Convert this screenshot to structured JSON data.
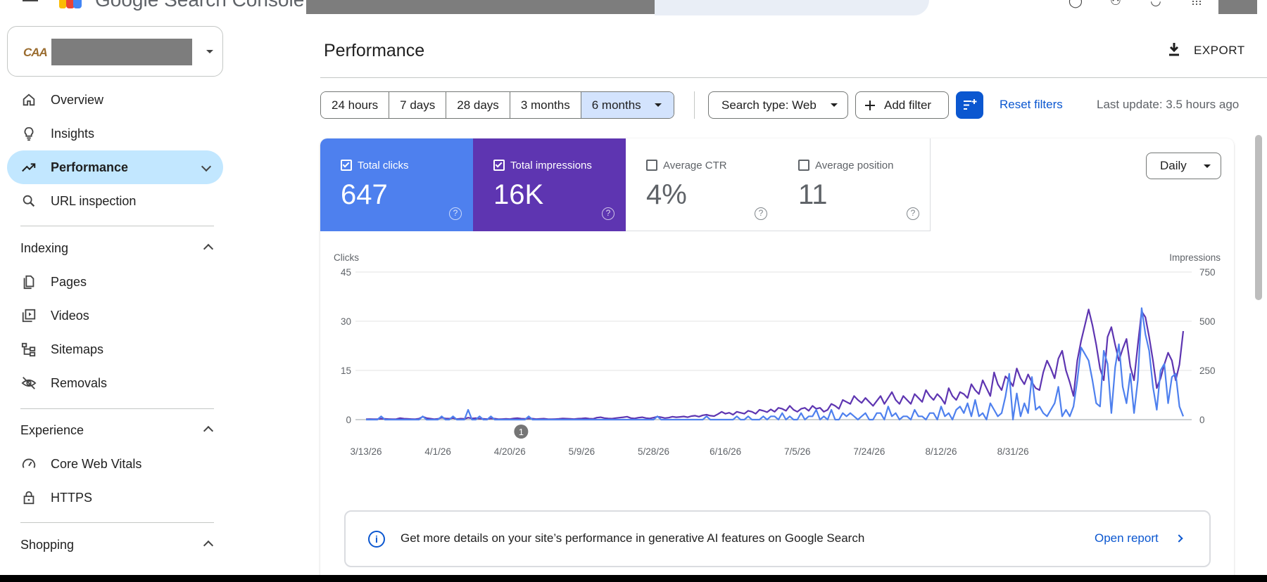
{
  "app": {
    "title": "Google Search Console"
  },
  "property": {
    "logo_text": "CAA"
  },
  "sidebar": {
    "items": [
      {
        "label": "Overview",
        "icon": "home-icon"
      },
      {
        "label": "Insights",
        "icon": "lightbulb-icon"
      },
      {
        "label": "Performance",
        "icon": "trending-up-icon",
        "active": true
      },
      {
        "label": "URL inspection",
        "icon": "search-icon"
      }
    ],
    "indexing": {
      "title": "Indexing",
      "items": [
        {
          "label": "Pages",
          "icon": "pages-icon"
        },
        {
          "label": "Videos",
          "icon": "video-library-icon"
        },
        {
          "label": "Sitemaps",
          "icon": "sitemap-icon"
        },
        {
          "label": "Removals",
          "icon": "visibility-off-icon"
        }
      ]
    },
    "experience": {
      "title": "Experience",
      "items": [
        {
          "label": "Core Web Vitals",
          "icon": "speed-icon"
        },
        {
          "label": "HTTPS",
          "icon": "lock-icon"
        }
      ]
    },
    "shopping": {
      "title": "Shopping"
    }
  },
  "main": {
    "title": "Performance",
    "export_label": "EXPORT",
    "date_ranges": [
      "24 hours",
      "7 days",
      "28 days",
      "3 months",
      "6 months"
    ],
    "selected_range": "6 months",
    "search_type": "Search type: Web",
    "add_filter": "Add filter",
    "reset_filters": "Reset filters",
    "last_update": "Last update: 3.5 hours ago",
    "granularity": "Daily"
  },
  "metrics": {
    "clicks": {
      "label": "Total clicks",
      "value": "647",
      "checked": true,
      "color": "#4e80ee"
    },
    "impressions": {
      "label": "Total impressions",
      "value": "16K",
      "checked": true,
      "color": "#5e35b1"
    },
    "ctr": {
      "label": "Average CTR",
      "value": "4%",
      "checked": false
    },
    "position": {
      "label": "Average position",
      "value": "11",
      "checked": false
    }
  },
  "chart_data": {
    "type": "line",
    "left_axis_label": "Clicks",
    "right_axis_label": "Impressions",
    "left_ticks": [
      0,
      15,
      30,
      45
    ],
    "right_ticks": [
      0,
      250,
      500,
      750
    ],
    "ylim_left": [
      0,
      45
    ],
    "ylim_right": [
      0,
      750
    ],
    "x_tick_labels": [
      "3/13/26",
      "4/1/26",
      "4/20/26",
      "5/9/26",
      "5/28/26",
      "6/16/26",
      "7/5/26",
      "7/24/26",
      "8/12/26",
      "8/31/26"
    ],
    "annotation": "1",
    "series": [
      {
        "name": "Clicks",
        "axis": "left",
        "color": "#4e80ee",
        "values": [
          0,
          0,
          0,
          0,
          1,
          0,
          0,
          0,
          0,
          0,
          0,
          0,
          0,
          0,
          0,
          1,
          0,
          0,
          0,
          0,
          1,
          0,
          0,
          1,
          0,
          0,
          0,
          3,
          0,
          0,
          1,
          0,
          0,
          1,
          0,
          0,
          0,
          0,
          0,
          0,
          0,
          0,
          0,
          1,
          0,
          0,
          0,
          0,
          0,
          0,
          0,
          0,
          0,
          0,
          0,
          0,
          0,
          0,
          0,
          0,
          0,
          0,
          0,
          0,
          0,
          0,
          0,
          0,
          0,
          0,
          0,
          0,
          0,
          0,
          0,
          0,
          0,
          1,
          0,
          0,
          0,
          0,
          0,
          0,
          0,
          0,
          0,
          0,
          0,
          0,
          1,
          0,
          0,
          0,
          0,
          0,
          0,
          0,
          1,
          0,
          0,
          1,
          0,
          0,
          0,
          1,
          0,
          1,
          1,
          0,
          2,
          0,
          1,
          0,
          0,
          2,
          0,
          1,
          1,
          3,
          0,
          1,
          0,
          3,
          0,
          0,
          2,
          1,
          2,
          1,
          0,
          1,
          2,
          0,
          0,
          2,
          2,
          0,
          4,
          1,
          2,
          0,
          1,
          1,
          0,
          3,
          1,
          1,
          0,
          2,
          2,
          0,
          4,
          1,
          2,
          0,
          3,
          4,
          2,
          5,
          1,
          6,
          1,
          2,
          0,
          5,
          3,
          1,
          2,
          7,
          14,
          0,
          8,
          1,
          5,
          2,
          13,
          3,
          4,
          2,
          1,
          3,
          5,
          10,
          1,
          3,
          1,
          4,
          12,
          22,
          20,
          18,
          12,
          5,
          4,
          21,
          17,
          2,
          16,
          23,
          10,
          5,
          14,
          2,
          12,
          34,
          26,
          21,
          10,
          3,
          15,
          17,
          5,
          13,
          14,
          4,
          1
        ]
      },
      {
        "name": "Impressions",
        "axis": "right",
        "color": "#5e35b1",
        "values": [
          2,
          3,
          2,
          3,
          5,
          4,
          3,
          2,
          3,
          8,
          5,
          4,
          3,
          2,
          5,
          15,
          8,
          5,
          2,
          4,
          10,
          6,
          5,
          8,
          3,
          5,
          4,
          10,
          6,
          8,
          5,
          4,
          3,
          6,
          5,
          2,
          3,
          4,
          3,
          6,
          8,
          5,
          4,
          6,
          5,
          3,
          4,
          5,
          3,
          2,
          3,
          4,
          6,
          5,
          4,
          3,
          5,
          6,
          8,
          5,
          4,
          10,
          12,
          8,
          6,
          5,
          8,
          10,
          12,
          15,
          8,
          6,
          10,
          12,
          8,
          6,
          10,
          15,
          12,
          8,
          10,
          15,
          12,
          14,
          16,
          12,
          18,
          20,
          15,
          22,
          25,
          20,
          18,
          28,
          40,
          30,
          35,
          25,
          40,
          35,
          30,
          45,
          40,
          30,
          50,
          45,
          38,
          52,
          40,
          60,
          55,
          45,
          70,
          50,
          40,
          55,
          60,
          45,
          70,
          55,
          60,
          40,
          50,
          80,
          70,
          55,
          100,
          90,
          80,
          120,
          100,
          85,
          110,
          90,
          70,
          95,
          120,
          80,
          110,
          140,
          100,
          80,
          120,
          100,
          80,
          130,
          110,
          90,
          150,
          120,
          100,
          130,
          110,
          80,
          160,
          120,
          100,
          140,
          130,
          110,
          180,
          150,
          130,
          200,
          160,
          120,
          240,
          180,
          150,
          220,
          200,
          170,
          260,
          210,
          180,
          230,
          190,
          160,
          150,
          240,
          300,
          260,
          210,
          310,
          350,
          250,
          190,
          120,
          300,
          400,
          480,
          560,
          480,
          380,
          260,
          200,
          420,
          470,
          380,
          300,
          360,
          410,
          270,
          200,
          380,
          550,
          520,
          420,
          300,
          160,
          210,
          280,
          340,
          300,
          200,
          280,
          450
        ]
      }
    ]
  },
  "banner": {
    "text": "Get more details on your site’s performance in generative AI features on Google Search",
    "link": "Open report"
  }
}
